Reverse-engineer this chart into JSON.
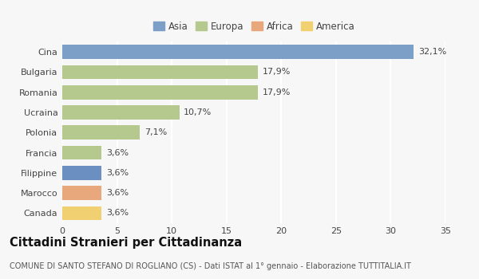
{
  "categories": [
    "Cina",
    "Bulgaria",
    "Romania",
    "Ucraina",
    "Polonia",
    "Francia",
    "Filippine",
    "Marocco",
    "Canada"
  ],
  "values": [
    32.1,
    17.9,
    17.9,
    10.7,
    7.1,
    3.6,
    3.6,
    3.6,
    3.6
  ],
  "labels": [
    "32,1%",
    "17,9%",
    "17,9%",
    "10,7%",
    "7,1%",
    "3,6%",
    "3,6%",
    "3,6%",
    "3,6%"
  ],
  "colors": [
    "#7b9fc7",
    "#b5c98e",
    "#b5c98e",
    "#b5c98e",
    "#b5c98e",
    "#b5c98e",
    "#6a8fc0",
    "#e8a87c",
    "#f0d070"
  ],
  "legend": [
    {
      "label": "Asia",
      "color": "#7b9fc7"
    },
    {
      "label": "Europa",
      "color": "#b5c98e"
    },
    {
      "label": "Africa",
      "color": "#e8a87c"
    },
    {
      "label": "America",
      "color": "#f0d070"
    }
  ],
  "xlim": [
    0,
    35
  ],
  "xticks": [
    0,
    5,
    10,
    15,
    20,
    25,
    30,
    35
  ],
  "title": "Cittadini Stranieri per Cittadinanza",
  "subtitle": "COMUNE DI SANTO STEFANO DI ROGLIANO (CS) - Dati ISTAT al 1° gennaio - Elaborazione TUTTITALIA.IT",
  "bg_color": "#f7f7f7",
  "bar_height": 0.7,
  "label_fontsize": 8,
  "tick_fontsize": 8,
  "title_fontsize": 10.5,
  "subtitle_fontsize": 7
}
